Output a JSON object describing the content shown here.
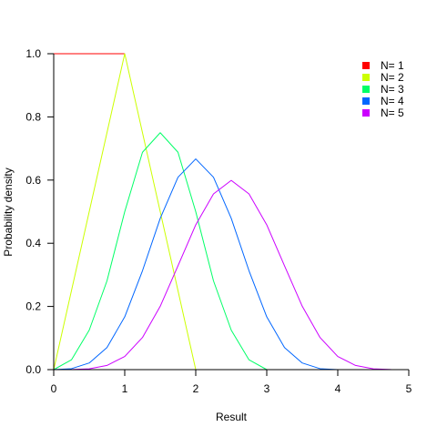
{
  "chart_data": {
    "type": "line",
    "xlabel": "Result",
    "ylabel": "Probability density",
    "xlim": [
      0,
      5
    ],
    "ylim": [
      0,
      1
    ],
    "xticks": [
      "0",
      "1",
      "2",
      "3",
      "4",
      "5"
    ],
    "yticks": [
      "0.0",
      "0.2",
      "0.4",
      "0.6",
      "0.8",
      "1.0"
    ],
    "grid": false,
    "legend_position": "top-right",
    "series": [
      {
        "name": "N= 1",
        "color": "#FF0000",
        "x": [
          0,
          1
        ],
        "y": [
          1,
          1
        ]
      },
      {
        "name": "N= 2",
        "color": "#CCFF00",
        "x": [
          0,
          1,
          2
        ],
        "y": [
          0,
          1,
          0
        ]
      },
      {
        "name": "N= 3",
        "color": "#00FF66",
        "x": [
          0,
          0.25,
          0.5,
          0.75,
          1,
          1.25,
          1.5,
          1.75,
          2,
          2.25,
          2.5,
          2.75,
          3
        ],
        "y": [
          0,
          0.031,
          0.125,
          0.281,
          0.5,
          0.688,
          0.75,
          0.688,
          0.5,
          0.281,
          0.125,
          0.031,
          0
        ]
      },
      {
        "name": "N= 4",
        "color": "#0066FF",
        "x": [
          0,
          0.25,
          0.5,
          0.75,
          1,
          1.25,
          1.5,
          1.75,
          2,
          2.25,
          2.5,
          2.75,
          3,
          3.25,
          3.5,
          3.75,
          4
        ],
        "y": [
          0,
          0.003,
          0.021,
          0.07,
          0.167,
          0.313,
          0.479,
          0.609,
          0.667,
          0.609,
          0.479,
          0.313,
          0.167,
          0.07,
          0.021,
          0.003,
          0
        ]
      },
      {
        "name": "N= 5",
        "color": "#CC00FF",
        "x": [
          0,
          0.25,
          0.5,
          0.75,
          1,
          1.25,
          1.5,
          1.75,
          2,
          2.25,
          2.5,
          2.75,
          3,
          3.25,
          3.5,
          3.75,
          4,
          4.25,
          4.5,
          4.75,
          5
        ],
        "y": [
          0,
          0.0002,
          0.0026,
          0.0132,
          0.0417,
          0.1017,
          0.2005,
          0.3288,
          0.4583,
          0.5561,
          0.599,
          0.5561,
          0.4583,
          0.3288,
          0.2005,
          0.1017,
          0.0417,
          0.0132,
          0.0026,
          0.0002,
          0
        ]
      }
    ]
  }
}
